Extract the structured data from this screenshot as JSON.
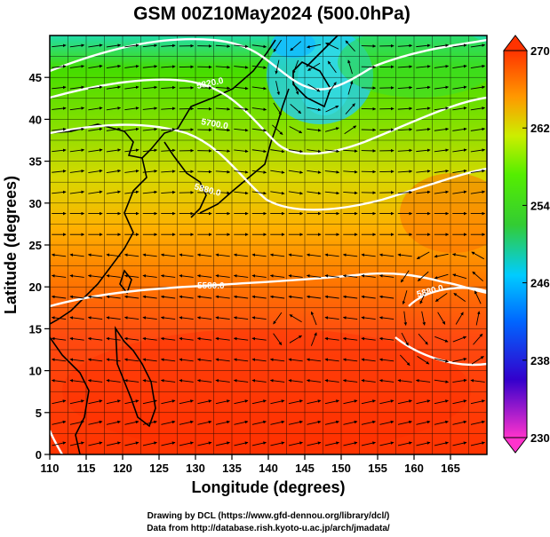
{
  "title": "GSM 00Z10May2024 (500.0hPa)",
  "xlabel": "Longitude (degrees)",
  "ylabel": "Latitude  (degrees)",
  "credits": [
    "Drawing by DCL (https://www.gfd-dennou.org/library/dcl/)",
    "Data from http://database.rish.kyoto-u.ac.jp/arch/jmadata/"
  ],
  "map": {
    "xlim": [
      110,
      170
    ],
    "ylim": [
      0,
      50
    ],
    "x_ticks": [
      "110",
      "115",
      "120",
      "125",
      "130",
      "135",
      "140",
      "145",
      "150",
      "155",
      "160",
      "165"
    ],
    "y_ticks": [
      "0",
      "5",
      "10",
      "15",
      "20",
      "25",
      "30",
      "35",
      "40",
      "45"
    ],
    "contour_labels": [
      "5820.0",
      "5700.0",
      "5880.0",
      "5580.0",
      "5880.0"
    ]
  },
  "colorbar": {
    "ticks": [
      "230",
      "238",
      "246",
      "254",
      "262",
      "270"
    ],
    "stops": [
      "#ff33cc",
      "#3300cc",
      "#0066ff",
      "#00ccff",
      "#33cc33",
      "#33ee00",
      "#ccee00",
      "#ff9900",
      "#ff3300"
    ]
  },
  "colors": {
    "warm": "#ff3300",
    "orange": "#ff8c00",
    "green": "#44dd00",
    "cyan": "#22ccff",
    "contour": "#ffffff",
    "coast": "#000000"
  }
}
